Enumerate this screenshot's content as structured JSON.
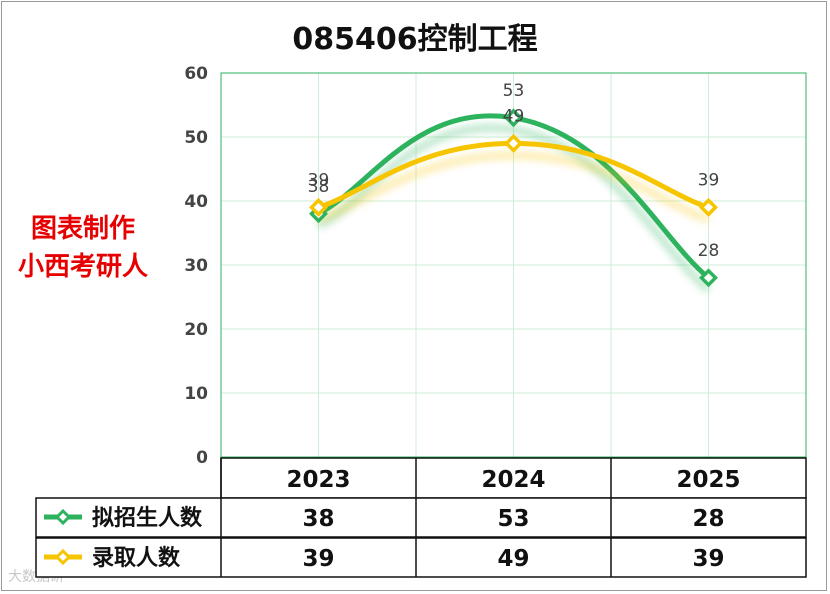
{
  "chart_data": {
    "type": "line",
    "title": "085406控制工程",
    "categories": [
      "2023",
      "2024",
      "2025"
    ],
    "series": [
      {
        "name": "拟招生人数",
        "values": [
          38,
          53,
          28
        ],
        "color": "#2db35e"
      },
      {
        "name": "录取人数",
        "values": [
          39,
          49,
          39
        ],
        "color": "#f7c400"
      }
    ],
    "ylim": [
      0,
      60
    ],
    "yticks": [
      "0",
      "10",
      "20",
      "30",
      "40",
      "50",
      "60"
    ],
    "grid": true,
    "legend": "data table below chart",
    "smooth": true
  },
  "watermark": {
    "line1": "图表制作",
    "line2": "小西考研人"
  },
  "footer_watermark": "大数据研"
}
